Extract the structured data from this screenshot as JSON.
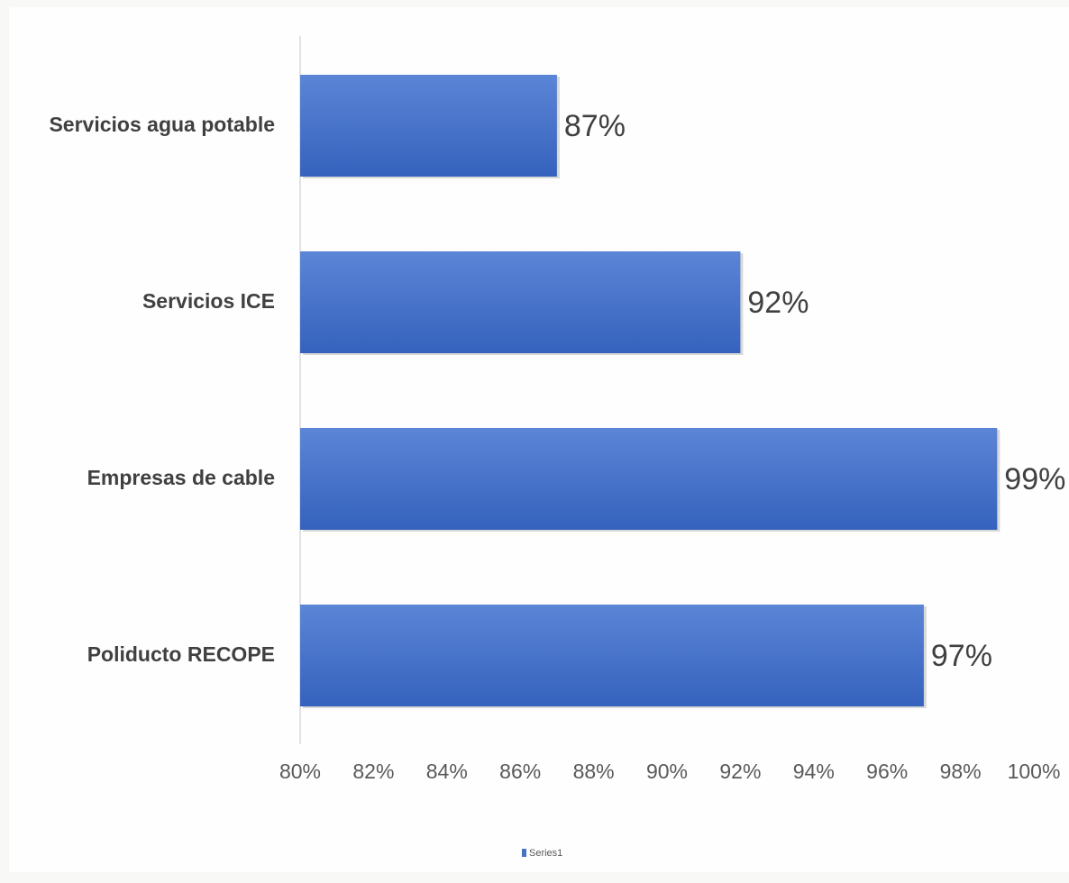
{
  "chart_data": {
    "type": "bar",
    "orientation": "horizontal",
    "categories": [
      "Servicios agua potable",
      "Servicios ICE",
      "Empresas de cable",
      "Poliducto RECOPE"
    ],
    "series": [
      {
        "name": "Series1",
        "color": "#4472c4",
        "values": [
          87,
          92,
          99,
          97
        ],
        "value_labels": [
          "87%",
          "92%",
          "99%",
          "97%"
        ]
      }
    ],
    "xlim": [
      80,
      100
    ],
    "xticks": [
      {
        "value": 80,
        "label": "80%"
      },
      {
        "value": 82,
        "label": "82%"
      },
      {
        "value": 84,
        "label": "84%"
      },
      {
        "value": 86,
        "label": "86%"
      },
      {
        "value": 88,
        "label": "88%"
      },
      {
        "value": 90,
        "label": "90%"
      },
      {
        "value": 92,
        "label": "92%"
      },
      {
        "value": 94,
        "label": "94%"
      },
      {
        "value": 96,
        "label": "96%"
      },
      {
        "value": 98,
        "label": "98%"
      },
      {
        "value": 100,
        "label": "100%"
      }
    ],
    "legend": "bottom"
  }
}
